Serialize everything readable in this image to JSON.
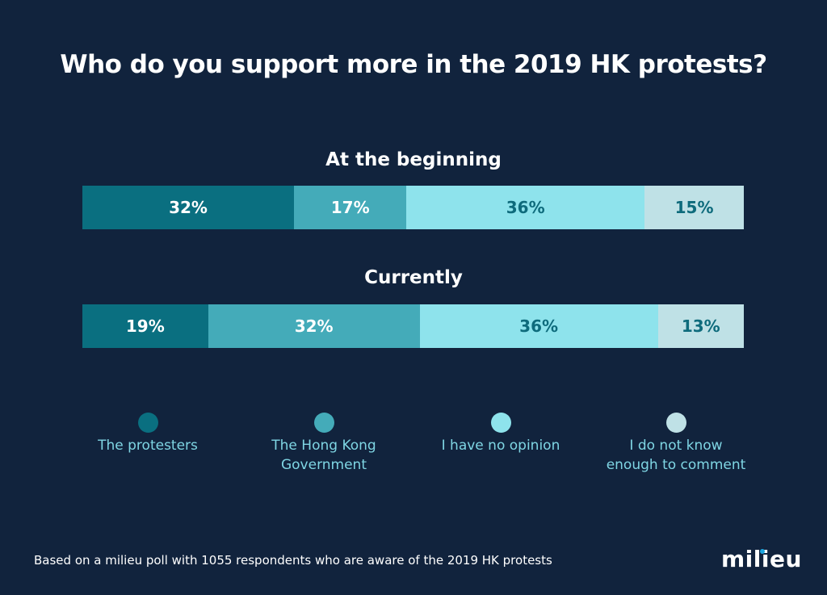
{
  "chart_data": {
    "type": "bar",
    "stacked": true,
    "orientation": "horizontal",
    "title": "Who do you support more in the 2019 HK protests?",
    "categories": [
      "At the beginning",
      "Currently"
    ],
    "series": [
      {
        "name": "The protesters",
        "values": [
          32,
          19
        ],
        "color": "#0a6f80",
        "label_color": "#ffffff"
      },
      {
        "name": "The Hong Kong Government",
        "values": [
          17,
          32
        ],
        "color": "#44abb9",
        "label_color": "#ffffff"
      },
      {
        "name": "I have no opinion",
        "values": [
          36,
          36
        ],
        "color": "#8ee3ec",
        "label_color": "#0e6b7c"
      },
      {
        "name": "I do not know enough to comment",
        "values": [
          15,
          13
        ],
        "color": "#bfe1e6",
        "label_color": "#0e6b7c"
      }
    ],
    "data_labels": [
      [
        "32%",
        "17%",
        "36%",
        "15%"
      ],
      [
        "19%",
        "32%",
        "36%",
        "13%"
      ]
    ],
    "legend_labels": [
      [
        "The protesters"
      ],
      [
        "The Hong Kong",
        "Government"
      ],
      [
        "I have no opinion"
      ],
      [
        "I do not know",
        "enough to comment"
      ]
    ],
    "legend_position": "bottom",
    "xlim": [
      0,
      100
    ]
  },
  "footer": "Based on a milieu poll with 1055 respondents who are aware of the 2019 HK protests",
  "logo": "milieu"
}
